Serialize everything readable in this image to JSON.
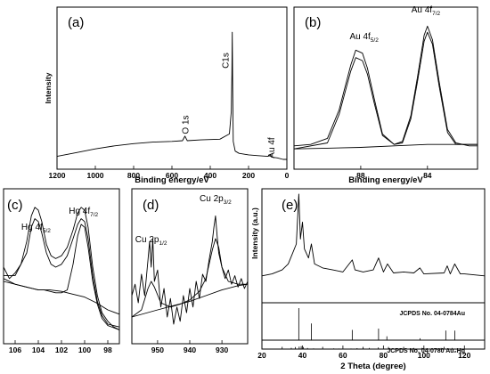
{
  "chart_data": [
    {
      "id": "a",
      "type": "line",
      "panel_label": "(a)",
      "xlabel": "Binding energy/eV",
      "ylabel": "Intensity",
      "xlim": [
        1200,
        0
      ],
      "reverse_x": true,
      "xticks": [
        1200,
        1000,
        800,
        600,
        400,
        200,
        0
      ],
      "tick_labels": [
        "1200",
        "1000",
        "800",
        "600",
        "400",
        "200",
        "0"
      ],
      "annotations": [
        {
          "text": "C1s",
          "x": 285
        },
        {
          "text": "O 1s",
          "x": 532
        },
        {
          "text": "Au 4f",
          "x": 84
        }
      ],
      "series": [
        {
          "x": [
            1200,
            1100,
            1000,
            900,
            800,
            700,
            600,
            545,
            532,
            520,
            450,
            350,
            300,
            290,
            287,
            285,
            283,
            280,
            270,
            250,
            200,
            150,
            100,
            90,
            84,
            80,
            50,
            20,
            0
          ],
          "y": [
            0.05,
            0.075,
            0.1,
            0.12,
            0.135,
            0.145,
            0.15,
            0.155,
            0.185,
            0.155,
            0.16,
            0.165,
            0.2,
            0.35,
            0.6,
            0.88,
            0.5,
            0.15,
            0.085,
            0.07,
            0.06,
            0.055,
            0.05,
            0.055,
            0.06,
            0.045,
            0.04,
            0.03,
            0.03
          ]
        }
      ]
    },
    {
      "id": "b",
      "type": "line",
      "panel_label": "(b)",
      "xlabel": "Binding energy/eV",
      "xlim": [
        92,
        81
      ],
      "reverse_x": true,
      "xticks": [
        88,
        84
      ],
      "tick_labels": [
        "88",
        "84"
      ],
      "annotations": [
        {
          "text": "Au 4f",
          "sub": "5/2",
          "x": 87.8
        },
        {
          "text": "Au 4f",
          "sub": "7/2",
          "x": 84.1
        }
      ],
      "series": [
        {
          "x": [
            92,
            91,
            90,
            89.3,
            88.6,
            88.3,
            87.9,
            87.6,
            87.2,
            86.7,
            86,
            85.5,
            85,
            84.6,
            84.2,
            84,
            83.7,
            83.3,
            82.8,
            82.3,
            81.5,
            81
          ],
          "y": [
            0.12,
            0.13,
            0.17,
            0.36,
            0.66,
            0.76,
            0.74,
            0.64,
            0.44,
            0.2,
            0.13,
            0.15,
            0.32,
            0.58,
            0.86,
            0.92,
            0.83,
            0.55,
            0.23,
            0.14,
            0.12,
            0.12
          ]
        },
        {
          "x": [
            92,
            90,
            88,
            86,
            84,
            82,
            81
          ],
          "y": [
            0.1,
            0.105,
            0.11,
            0.12,
            0.13,
            0.13,
            0.13
          ]
        },
        {
          "x": [
            92,
            90,
            89.3,
            88.6,
            88.3,
            87.9,
            87.6,
            87.2,
            86.7,
            86,
            85.5,
            85,
            84.6,
            84.2,
            84,
            83.7,
            83.3,
            82.8,
            82.3,
            81
          ],
          "y": [
            0.1,
            0.14,
            0.33,
            0.62,
            0.71,
            0.69,
            0.6,
            0.41,
            0.19,
            0.13,
            0.14,
            0.3,
            0.55,
            0.82,
            0.88,
            0.8,
            0.52,
            0.21,
            0.13,
            0.13
          ]
        }
      ]
    },
    {
      "id": "c",
      "type": "line",
      "panel_label": "(c)",
      "xlim": [
        107,
        97
      ],
      "reverse_x": true,
      "xticks": [
        106,
        104,
        102,
        100,
        98
      ],
      "tick_labels": [
        "106",
        "104",
        "102",
        "100",
        "98"
      ],
      "annotations": [
        {
          "text": "Hg 4f",
          "sub": "5/2",
          "x": 104.2
        },
        {
          "text": "Hg 4f",
          "sub": "7/2",
          "x": 100.1
        }
      ],
      "series": [
        {
          "x": [
            107,
            106.5,
            106,
            105.5,
            105,
            104.6,
            104.3,
            104,
            103.7,
            103.3,
            102.9,
            102.5,
            102,
            101.5,
            101,
            100.6,
            100.3,
            100,
            99.7,
            99.3,
            98.9,
            98.5,
            98,
            97.5,
            97
          ],
          "y": [
            0.5,
            0.42,
            0.46,
            0.52,
            0.68,
            0.86,
            0.92,
            0.9,
            0.82,
            0.66,
            0.58,
            0.56,
            0.58,
            0.64,
            0.76,
            0.88,
            0.92,
            0.9,
            0.78,
            0.5,
            0.3,
            0.18,
            0.12,
            0.08,
            0.06
          ]
        },
        {
          "x": [
            107,
            106,
            105,
            104,
            103,
            102,
            101,
            100,
            99,
            98,
            97
          ],
          "y": [
            0.42,
            0.38,
            0.36,
            0.34,
            0.34,
            0.33,
            0.31,
            0.29,
            0.25,
            0.2,
            0.17
          ]
        },
        {
          "x": [
            107,
            106,
            105,
            104.6,
            104.3,
            104,
            103.7,
            103.3,
            102.9,
            102.5,
            102,
            101.5,
            101,
            100.6,
            100.3,
            100,
            99.7,
            99.3,
            98.9,
            98.5,
            98,
            97
          ],
          "y": [
            0.44,
            0.44,
            0.6,
            0.78,
            0.84,
            0.82,
            0.74,
            0.6,
            0.52,
            0.5,
            0.52,
            0.58,
            0.7,
            0.8,
            0.84,
            0.82,
            0.7,
            0.44,
            0.26,
            0.16,
            0.1,
            0.08
          ]
        },
        {
          "x": [
            107,
            105,
            104.5,
            104,
            103.5,
            103,
            102.5,
            102,
            101.5,
            101,
            100.6,
            100.3,
            100,
            99.7,
            99.3,
            98.9,
            98.5,
            98,
            97
          ],
          "y": [
            0.4,
            0.36,
            0.35,
            0.34,
            0.34,
            0.33,
            0.32,
            0.32,
            0.34,
            0.52,
            0.72,
            0.8,
            0.78,
            0.64,
            0.4,
            0.24,
            0.14,
            0.09,
            0.06
          ]
        }
      ]
    },
    {
      "id": "d",
      "type": "line",
      "panel_label": "(d)",
      "xlim": [
        958,
        922
      ],
      "reverse_x": true,
      "xticks": [
        950,
        940,
        930
      ],
      "tick_labels": [
        "950",
        "940",
        "930"
      ],
      "annotations": [
        {
          "text": "Cu 2p",
          "sub": "1/2",
          "x": 952
        },
        {
          "text": "Cu 2p",
          "sub": "3/2",
          "x": 932
        }
      ],
      "series": [
        {
          "x": [
            958,
            957,
            956,
            955,
            954,
            953,
            952.5,
            952,
            951.5,
            951,
            950,
            949,
            948,
            947,
            946,
            945,
            944,
            943,
            942,
            941,
            940,
            939,
            938,
            937,
            936,
            935,
            934,
            933,
            932.5,
            932,
            931.5,
            931,
            930,
            929,
            928,
            927,
            926,
            925,
            924,
            923,
            922
          ],
          "y": [
            0.3,
            0.38,
            0.25,
            0.45,
            0.3,
            0.55,
            0.68,
            0.5,
            0.7,
            0.4,
            0.48,
            0.22,
            0.35,
            0.15,
            0.28,
            0.1,
            0.22,
            0.12,
            0.3,
            0.18,
            0.35,
            0.22,
            0.4,
            0.28,
            0.45,
            0.4,
            0.55,
            0.68,
            0.78,
            0.86,
            0.72,
            0.6,
            0.5,
            0.42,
            0.48,
            0.38,
            0.44,
            0.36,
            0.42,
            0.35,
            0.4
          ]
        },
        {
          "x": [
            958,
            950,
            945,
            940,
            935,
            930,
            925,
            922
          ],
          "y": [
            0.15,
            0.2,
            0.23,
            0.26,
            0.3,
            0.34,
            0.37,
            0.38
          ]
        },
        {
          "x": [
            958,
            955,
            953,
            952,
            951,
            949,
            946,
            943,
            940,
            937,
            935,
            933,
            932,
            931,
            930,
            928,
            925,
            922
          ],
          "y": [
            0.15,
            0.2,
            0.35,
            0.4,
            0.36,
            0.25,
            0.22,
            0.24,
            0.27,
            0.33,
            0.42,
            0.62,
            0.7,
            0.64,
            0.5,
            0.4,
            0.38,
            0.38
          ]
        }
      ]
    },
    {
      "id": "e",
      "type": "line",
      "panel_label": "(e)",
      "xlabel": "2 Theta (degree)",
      "ylabel": "Intensity (a.u.)",
      "xlim": [
        20,
        130
      ],
      "xticks": [
        20,
        40,
        60,
        80,
        100,
        120
      ],
      "tick_labels": [
        "20",
        "40",
        "60",
        "80",
        "100",
        "120"
      ],
      "series": [
        {
          "x": [
            20,
            25,
            30,
            33,
            35,
            37,
            38.2,
            39,
            40,
            41,
            43,
            44.4,
            46,
            50,
            55,
            60,
            64.6,
            66,
            70,
            75,
            77.6,
            80,
            82,
            85,
            90,
            95,
            98,
            100,
            110,
            111.5,
            113,
            115.2,
            118,
            120,
            125,
            130
          ],
          "y": [
            0.18,
            0.2,
            0.24,
            0.3,
            0.4,
            0.5,
            1.0,
            0.55,
            0.72,
            0.45,
            0.36,
            0.5,
            0.3,
            0.26,
            0.24,
            0.22,
            0.34,
            0.24,
            0.22,
            0.24,
            0.36,
            0.22,
            0.3,
            0.21,
            0.22,
            0.21,
            0.26,
            0.2,
            0.21,
            0.28,
            0.2,
            0.3,
            0.2,
            0.2,
            0.19,
            0.18
          ]
        }
      ],
      "reference_patterns": [
        {
          "label": "JCPDS No. 04-0784Au",
          "x": [
            38.2,
            44.4,
            64.6,
            77.6,
            81.7,
            98.1,
            110.8,
            115.3
          ],
          "y": [
            1.0,
            0.52,
            0.32,
            0.36,
            0.12,
            0.06,
            0.3,
            0.3
          ]
        },
        {
          "label": "JCPDS No. 04-0780 Au₂Hg",
          "x": [
            34.5,
            36.5,
            38.4,
            39.4,
            40.5,
            42.5,
            45.5,
            55.5,
            58,
            64,
            67,
            70,
            73,
            77.5,
            82.5,
            95,
            99,
            104,
            108.5,
            114,
            118
          ],
          "y": [
            0.35,
            0.55,
            0.7,
            0.8,
            0.55,
            0.3,
            0.2,
            0.2,
            0.15,
            0.15,
            0.25,
            0.3,
            0.3,
            0.45,
            0.6,
            0.3,
            0.3,
            0.2,
            0.3,
            0.3,
            0.2
          ]
        }
      ]
    }
  ]
}
